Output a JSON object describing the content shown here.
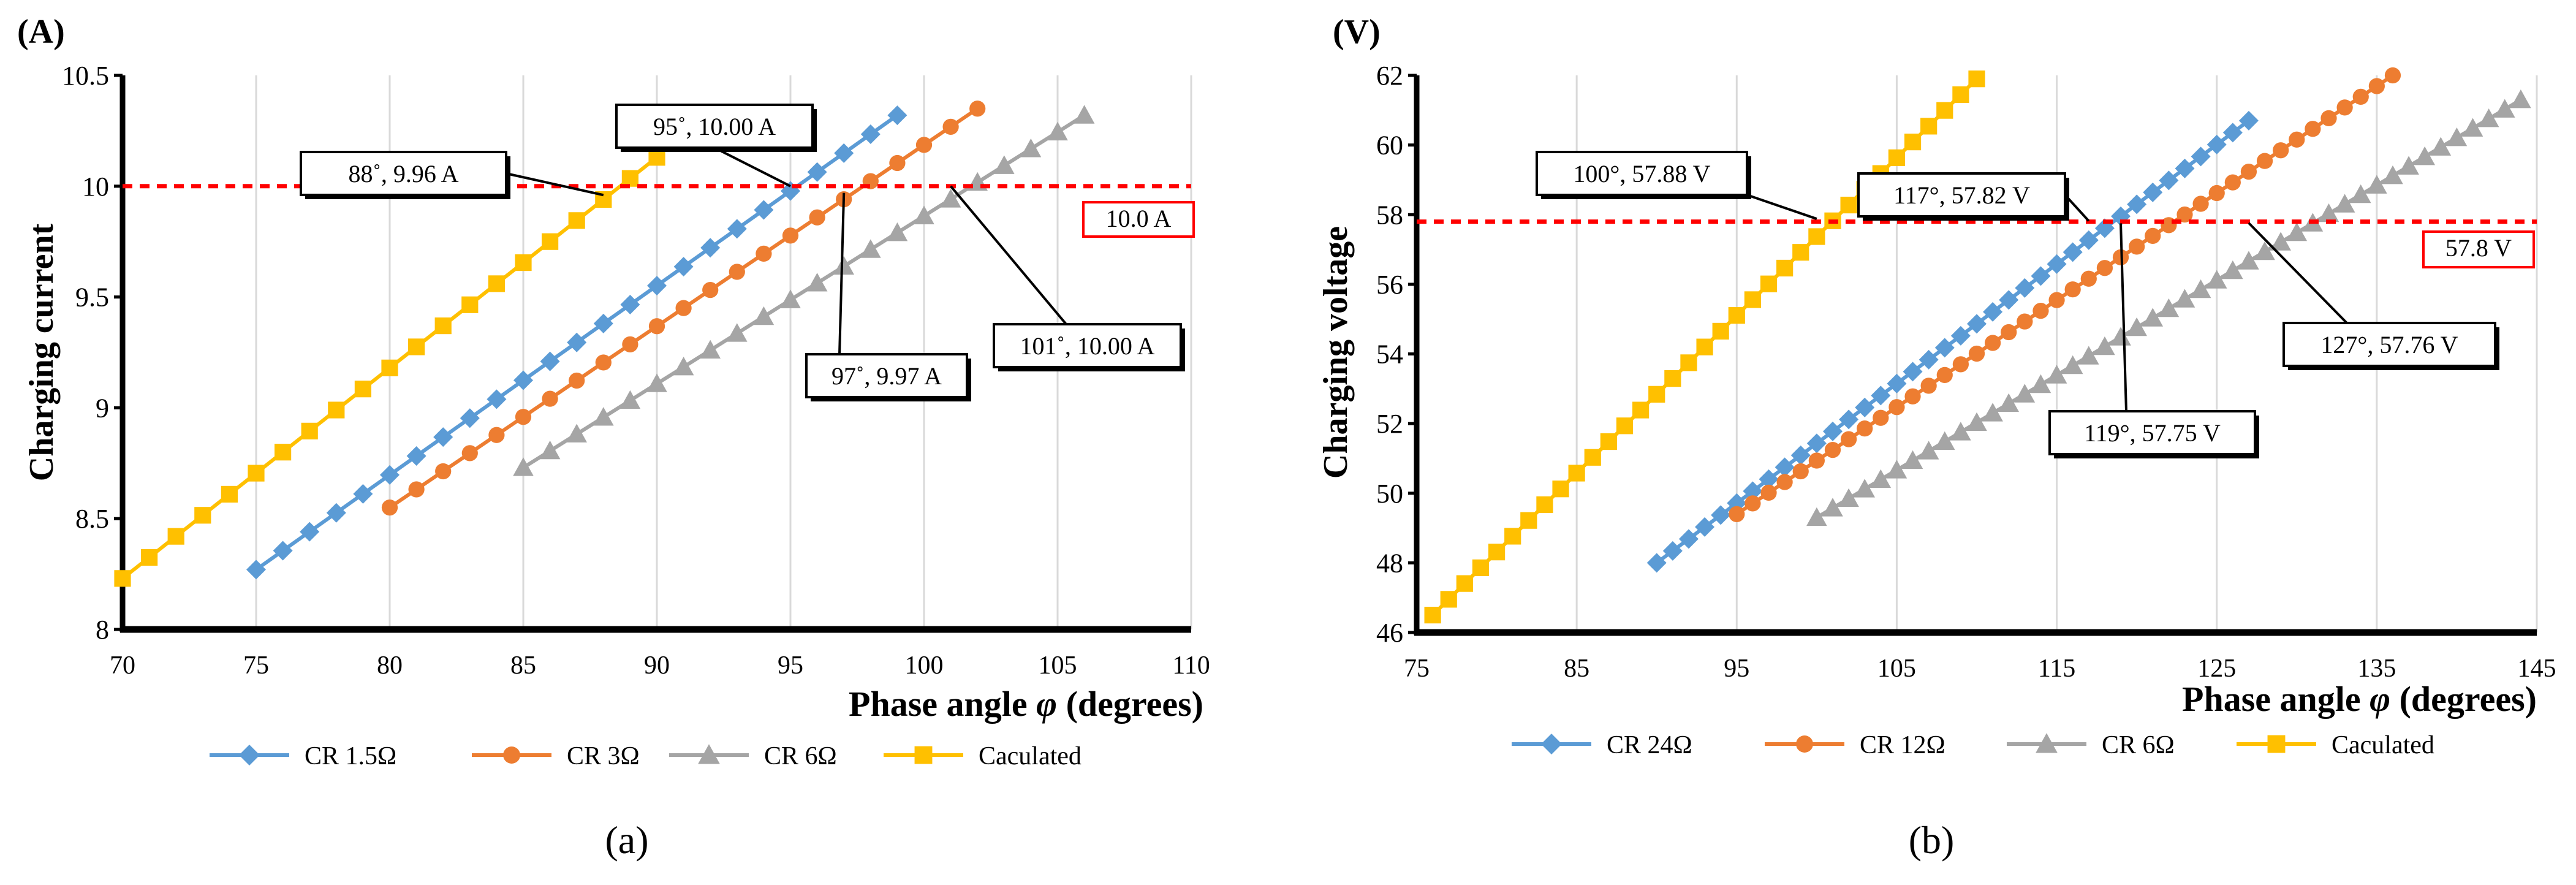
{
  "charts": [
    {
      "panel_label": "(A)",
      "caption": "(a)",
      "chart_data": {
        "type": "line",
        "xlabel_prefix": "Phase angle ",
        "xlabel_symbol": "φ",
        "xlabel_suffix": " (degrees)",
        "ylabel": "Charging current",
        "xlim": [
          70,
          110
        ],
        "ylim": [
          8,
          10.5
        ],
        "xticks": [
          70,
          75,
          80,
          85,
          90,
          95,
          100,
          105,
          110
        ],
        "yticks": [
          8,
          8.5,
          9,
          9.5,
          10,
          10.5
        ],
        "ytick_labels": [
          "8",
          "8.5",
          "9",
          "9.5",
          "10",
          "10.5"
        ],
        "grid": "vertical",
        "legend_position": "bottom",
        "series": [
          {
            "name": "CR 1.5Ω",
            "color": "#5b9bd5",
            "marker": "diamond",
            "x_start": 75,
            "x_end": 99,
            "y_start": 8.27,
            "y_end": 10.32
          },
          {
            "name": "CR 3Ω",
            "color": "#ed7d31",
            "marker": "circle",
            "x_start": 80,
            "x_end": 102,
            "y_start": 8.55,
            "y_end": 10.35
          },
          {
            "name": "CR 6Ω",
            "color": "#a5a5a5",
            "marker": "triangle",
            "x_start": 85,
            "x_end": 106,
            "y_start": 8.73,
            "y_end": 10.32
          },
          {
            "name": "Caculated",
            "color": "#ffc000",
            "marker": "square",
            "x_start": 70,
            "x_end": 90,
            "y_start": 8.23,
            "y_end": 10.13
          }
        ],
        "reference_line": {
          "y": 10.0,
          "label": "10.0 A",
          "color": "#ff0000"
        },
        "annotations": [
          {
            "label": "88˚, 9.96 A",
            "x": 88,
            "y": 9.96
          },
          {
            "label": "95˚, 10.00 A",
            "x": 95,
            "y": 10.0
          },
          {
            "label": "97˚, 9.97 A",
            "x": 97,
            "y": 9.97
          },
          {
            "label": "101˚, 10.00 A",
            "x": 101,
            "y": 10.0
          }
        ]
      }
    },
    {
      "panel_label": "(V)",
      "caption": "(b)",
      "chart_data": {
        "type": "line",
        "xlabel_prefix": "Phase angle ",
        "xlabel_symbol": "φ",
        "xlabel_suffix": " (degrees)",
        "ylabel": "Charging voltage",
        "xlim": [
          75,
          145
        ],
        "ylim": [
          46,
          62
        ],
        "xticks": [
          75,
          85,
          95,
          105,
          115,
          125,
          135,
          145
        ],
        "yticks": [
          46,
          48,
          50,
          52,
          54,
          56,
          58,
          60,
          62
        ],
        "ytick_labels": [
          "46",
          "48",
          "50",
          "52",
          "54",
          "56",
          "58",
          "60",
          "62"
        ],
        "grid": "vertical",
        "legend_position": "bottom",
        "series": [
          {
            "name": "CR 24Ω",
            "color": "#5b9bd5",
            "marker": "diamond",
            "x_start": 90,
            "x_end": 127,
            "y_start": 48.0,
            "y_end": 60.7
          },
          {
            "name": "CR 12Ω",
            "color": "#ed7d31",
            "marker": "circle",
            "x_start": 95,
            "x_end": 136,
            "y_start": 49.4,
            "y_end": 62.0
          },
          {
            "name": "CR 6Ω",
            "color": "#a5a5a5",
            "marker": "triangle",
            "x_start": 100,
            "x_end": 144,
            "y_start": 49.3,
            "y_end": 61.3
          },
          {
            "name": "Caculated",
            "color": "#ffc000",
            "marker": "square",
            "x_start": 76,
            "x_end": 110,
            "y_start": 46.5,
            "y_end": 61.9
          }
        ],
        "reference_line": {
          "y": 57.8,
          "label": "57.8 V",
          "color": "#ff0000"
        },
        "annotations": [
          {
            "label": "100°, 57.88 V",
            "x": 100,
            "y": 57.88
          },
          {
            "label": "117°, 57.82 V",
            "x": 117,
            "y": 57.82
          },
          {
            "label": "119°, 57.75 V",
            "x": 119,
            "y": 57.75
          },
          {
            "label": "127°, 57.76 V",
            "x": 127,
            "y": 57.76
          }
        ]
      }
    }
  ]
}
